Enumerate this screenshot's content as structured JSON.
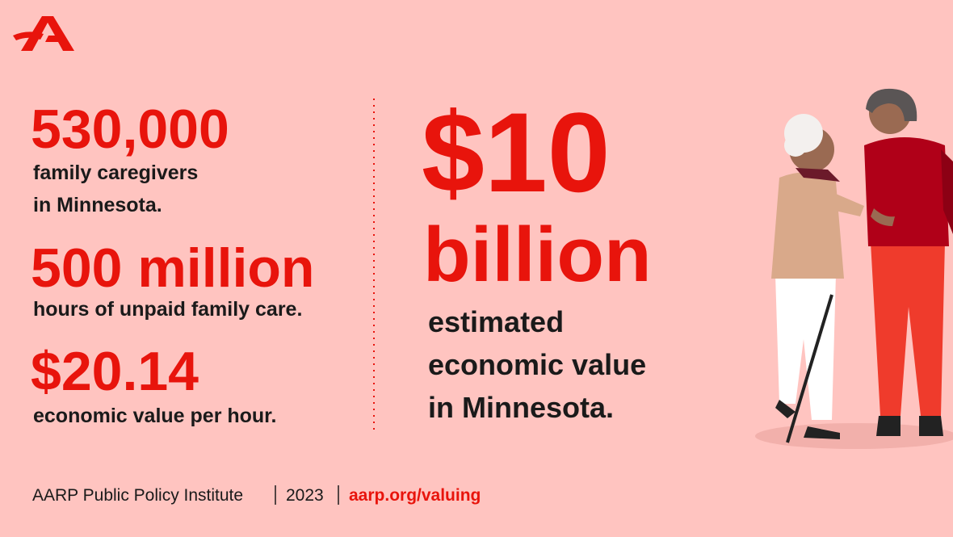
{
  "stats": [
    {
      "value": "530,000",
      "lines": [
        "family caregivers",
        "in Minnesota."
      ]
    },
    {
      "value": "500 million",
      "lines": [
        "hours of unpaid family care."
      ]
    },
    {
      "value": "$20.14",
      "lines": [
        "economic value per hour."
      ]
    }
  ],
  "headline": {
    "value_lines": [
      "$10",
      "billion"
    ],
    "lines": [
      "estimated",
      "economic value",
      "in Minnesota."
    ]
  },
  "footer": {
    "source": "AARP Public Policy Institute",
    "year": "2023",
    "link": "aarp.org/valuing"
  }
}
